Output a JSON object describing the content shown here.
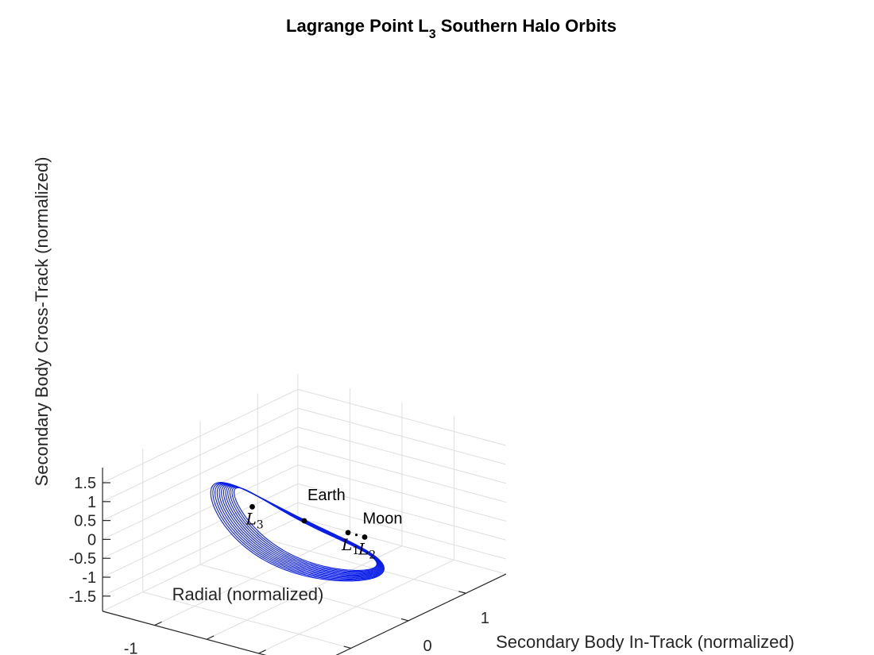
{
  "chart_data": {
    "type": "line",
    "projection": "3d",
    "title": "Lagrange Point L3 Southern Halo Orbits",
    "title_parts": {
      "main": "Lagrange Point L",
      "sub": "3",
      "rest": " Southern Halo Orbits"
    },
    "xlabel": "Radial (normalized)",
    "ylabel": "Secondary Body In-Track (normalized)",
    "zlabel": "Secondary Body Cross-Track (normalized)",
    "xlim": [
      -2,
      2
    ],
    "ylim": [
      -1.7,
      1.7
    ],
    "zlim": [
      -1.9,
      1.9
    ],
    "xticks": [
      -1,
      0,
      1
    ],
    "yticks": [
      -1,
      0,
      1
    ],
    "zticks": [
      -1.5,
      -1,
      -0.5,
      0,
      0.5,
      1,
      1.5
    ],
    "grid": true,
    "series_color": "#0b1ee8",
    "orbit_family": {
      "count": 12,
      "x_center": [
        0.0,
        0.0
      ],
      "x_amplitude": [
        1.35,
        1.6
      ],
      "y_amplitude": [
        0.22,
        0.42
      ],
      "z_amplitude": [
        1.05,
        1.2
      ],
      "z_offset": [
        -0.72,
        -0.74
      ],
      "y_offset": [
        0.02,
        -0.12
      ]
    },
    "points": [
      {
        "name": "Earth",
        "x": 0.0,
        "y": 0.0,
        "z": 0.0,
        "label": "Earth",
        "kind": "text"
      },
      {
        "name": "Moon",
        "x": 1.0,
        "y": 0.0,
        "z": 0.0,
        "label": "Moon",
        "kind": "text"
      },
      {
        "name": "L1",
        "x": 0.84,
        "y": 0.0,
        "z": 0.0,
        "label": "L",
        "sub": "1",
        "kind": "math"
      },
      {
        "name": "L2",
        "x": 1.16,
        "y": 0.0,
        "z": 0.0,
        "label": "L",
        "sub": "2",
        "kind": "math"
      },
      {
        "name": "L3",
        "x": -1.0,
        "y": 0.0,
        "z": 0.0,
        "label": "L",
        "sub": "3",
        "kind": "math"
      }
    ]
  }
}
